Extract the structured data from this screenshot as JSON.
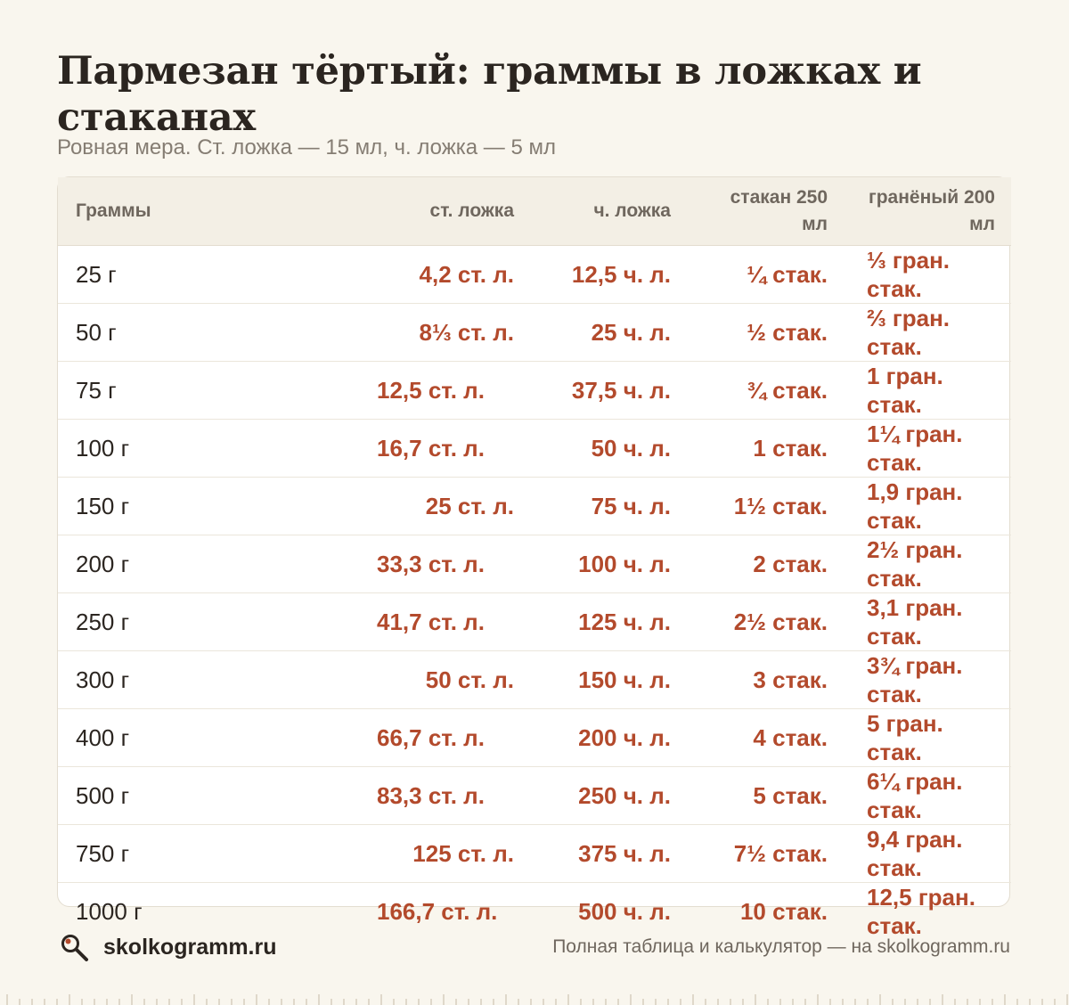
{
  "title": "Пармезан тёртый: граммы в ложках и стаканах",
  "subtitle": "Ровная мера. Ст. ложка — 15 мл, ч. ложка — 5 мл",
  "table": {
    "headers": [
      "Граммы",
      "ст. ложка",
      "ч. ложка",
      "стакан 250 мл",
      "гранёный 200 мл"
    ],
    "rows": [
      [
        "25 г",
        "4,2 ст. л.",
        "12,5 ч. л.",
        "¼ стак.",
        "⅓ гран. стак."
      ],
      [
        "50 г",
        "8⅓ ст. л.",
        "25 ч. л.",
        "½ стак.",
        "⅔ гран. стак."
      ],
      [
        "75 г",
        "12,5 ст. л.",
        "37,5 ч. л.",
        "¾ стак.",
        "1 гран. стак."
      ],
      [
        "100 г",
        "16,7 ст. л.",
        "50 ч. л.",
        "1 стак.",
        "1¼ гран. стак."
      ],
      [
        "150 г",
        "25 ст. л.",
        "75 ч. л.",
        "1½ стак.",
        "1,9 гран. стак."
      ],
      [
        "200 г",
        "33,3 ст. л.",
        "100 ч. л.",
        "2 стак.",
        "2½ гран. стак."
      ],
      [
        "250 г",
        "41,7 ст. л.",
        "125 ч. л.",
        "2½ стак.",
        "3,1 гран. стак."
      ],
      [
        "300 г",
        "50 ст. л.",
        "150 ч. л.",
        "3 стак.",
        "3¾ гран. стак."
      ],
      [
        "400 г",
        "66,7 ст. л.",
        "200 ч. л.",
        "4 стак.",
        "5 гран. стак."
      ],
      [
        "500 г",
        "83,3 ст. л.",
        "250 ч. л.",
        "5 стак.",
        "6¼ гран. стак."
      ],
      [
        "750 г",
        "125 ст. л.",
        "375 ч. л.",
        "7½ стак.",
        "9,4 гран. стак."
      ],
      [
        "1000 г",
        "166,7 ст. л.",
        "500 ч. л.",
        "10 стак.",
        "12,5 гран. стак."
      ]
    ]
  },
  "footer": {
    "logo_icon": "magnifier-icon",
    "site": "skolkogramm.ru",
    "note": "Полная таблица и калькулятор — на skolkogramm.ru"
  },
  "colors": {
    "background": "#f9f6ee",
    "accent": "#b34a2c",
    "header_bg": "#f3efe5",
    "text": "#2b2520",
    "muted": "#857d73"
  }
}
